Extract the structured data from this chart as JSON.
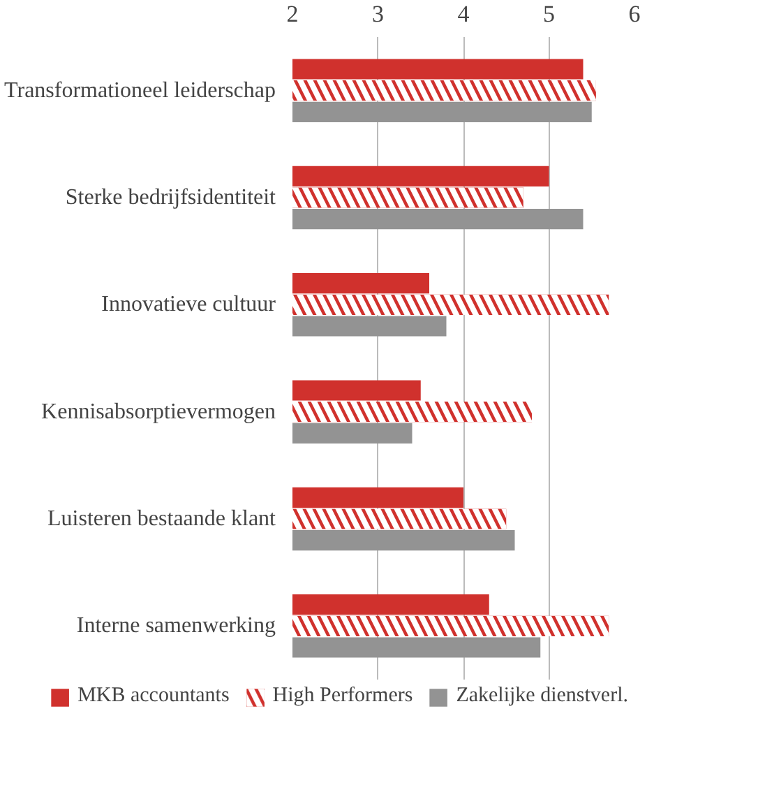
{
  "chart_data": {
    "type": "bar",
    "orientation": "horizontal",
    "categories": [
      "Transformationeel leiderschap",
      "Sterke bedrijfsidentiteit",
      "Innovatieve cultuur",
      "Kennisabsorptievermogen",
      "Luisteren bestaande klant",
      "Interne samenwerking"
    ],
    "series": [
      {
        "name": "MKB accountants",
        "color": "#d0312d",
        "values": [
          5.4,
          5.0,
          3.6,
          3.5,
          4.0,
          4.3
        ]
      },
      {
        "name": "High Performers",
        "color": "#d0312d",
        "values": [
          5.55,
          4.7,
          5.7,
          4.8,
          4.5,
          5.7
        ]
      },
      {
        "name": "Zakelijke dienstverl.",
        "color": "#939393",
        "values": [
          5.5,
          5.4,
          3.8,
          3.4,
          4.6,
          4.9
        ]
      }
    ],
    "xlim": [
      2,
      6
    ],
    "xticks": [
      2,
      3,
      4,
      5,
      6
    ],
    "grid": "x",
    "legend": "bottom"
  }
}
